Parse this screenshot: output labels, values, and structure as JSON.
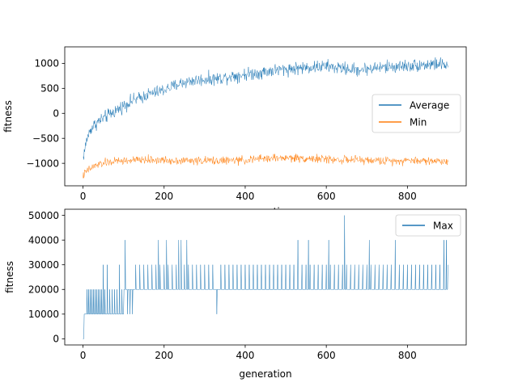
{
  "chart_data": [
    {
      "type": "line",
      "xlabel": "generation",
      "ylabel": "fitness",
      "xlim": [
        -45,
        945
      ],
      "ylim": [
        -1450,
        1330
      ],
      "xticks": [
        0,
        200,
        400,
        600,
        800
      ],
      "yticks": [
        -1000,
        -500,
        0,
        500,
        1000
      ],
      "xtick_labels": [
        "0",
        "200",
        "400",
        "600",
        "800"
      ],
      "ytick_labels": [
        "−1000",
        "−500",
        "0",
        "500",
        "1000"
      ],
      "legend": {
        "placement": "center-right",
        "entries": [
          "Average",
          "Min"
        ]
      },
      "series": [
        {
          "name": "Average",
          "color": "#1f77b4",
          "x": [
            0,
            10,
            20,
            30,
            40,
            60,
            80,
            100,
            120,
            140,
            160,
            180,
            200,
            220,
            240,
            260,
            280,
            300,
            320,
            340,
            360,
            380,
            400,
            420,
            440,
            460,
            480,
            500,
            520,
            540,
            560,
            580,
            600,
            620,
            640,
            660,
            680,
            700,
            720,
            740,
            760,
            780,
            800,
            820,
            840,
            860,
            880,
            900
          ],
          "values": [
            -900,
            -500,
            -300,
            -220,
            -150,
            -50,
            50,
            150,
            250,
            300,
            380,
            420,
            470,
            530,
            600,
            640,
            660,
            680,
            690,
            700,
            740,
            760,
            780,
            800,
            820,
            850,
            870,
            880,
            900,
            910,
            920,
            930,
            940,
            920,
            900,
            880,
            870,
            890,
            910,
            920,
            930,
            940,
            950,
            960,
            970,
            980,
            990,
            950
          ],
          "noise": 110
        },
        {
          "name": "Min",
          "color": "#ff7f0e",
          "x": [
            0,
            10,
            20,
            30,
            40,
            60,
            80,
            100,
            150,
            200,
            300,
            400,
            450,
            500,
            550,
            600,
            650,
            700,
            750,
            800,
            850,
            900
          ],
          "values": [
            -1250,
            -1150,
            -1100,
            -1050,
            -1020,
            -980,
            -960,
            -950,
            -930,
            -940,
            -950,
            -940,
            -900,
            -890,
            -900,
            -920,
            -930,
            -940,
            -950,
            -940,
            -950,
            -960
          ],
          "noise": 70
        }
      ]
    },
    {
      "type": "line",
      "xlabel": "generation",
      "ylabel": "fitness",
      "xlim": [
        -45,
        945
      ],
      "ylim": [
        -2500,
        52500
      ],
      "xticks": [
        0,
        200,
        400,
        600,
        800
      ],
      "yticks": [
        0,
        10000,
        20000,
        30000,
        40000,
        50000
      ],
      "xtick_labels": [
        "0",
        "200",
        "400",
        "600",
        "800"
      ],
      "ytick_labels": [
        "0",
        "10000",
        "20000",
        "30000",
        "40000",
        "50000"
      ],
      "legend": {
        "placement": "top-right",
        "entries": [
          "Max"
        ]
      },
      "series": [
        {
          "name": "Max",
          "color": "#1f77b4",
          "baseline_segments": [
            {
              "x": [
                0,
                2
              ],
              "value": 0
            },
            {
              "x": [
                2,
                100
              ],
              "value": 10000
            },
            {
              "x": [
                100,
                900
              ],
              "value": 20000
            }
          ],
          "spikes": [
            [
              10,
              20000
            ],
            [
              14,
              20000
            ],
            [
              18,
              20000
            ],
            [
              22,
              20000
            ],
            [
              26,
              20000
            ],
            [
              30,
              20000
            ],
            [
              34,
              20000
            ],
            [
              38,
              20000
            ],
            [
              42,
              20000
            ],
            [
              46,
              20000
            ],
            [
              50,
              30000
            ],
            [
              54,
              20000
            ],
            [
              60,
              30000
            ],
            [
              66,
              20000
            ],
            [
              72,
              20000
            ],
            [
              78,
              20000
            ],
            [
              84,
              20000
            ],
            [
              90,
              30000
            ],
            [
              96,
              20000
            ],
            [
              104,
              40000
            ],
            [
              110,
              10000
            ],
            [
              116,
              10000
            ],
            [
              122,
              10000
            ],
            [
              130,
              30000
            ],
            [
              140,
              30000
            ],
            [
              150,
              30000
            ],
            [
              160,
              30000
            ],
            [
              170,
              30000
            ],
            [
              180,
              30000
            ],
            [
              186,
              40000
            ],
            [
              190,
              30000
            ],
            [
              200,
              30000
            ],
            [
              206,
              40000
            ],
            [
              210,
              30000
            ],
            [
              220,
              30000
            ],
            [
              230,
              30000
            ],
            [
              236,
              40000
            ],
            [
              242,
              40000
            ],
            [
              250,
              30000
            ],
            [
              256,
              40000
            ],
            [
              260,
              30000
            ],
            [
              270,
              30000
            ],
            [
              280,
              30000
            ],
            [
              290,
              30000
            ],
            [
              300,
              30000
            ],
            [
              310,
              30000
            ],
            [
              320,
              30000
            ],
            [
              330,
              10000
            ],
            [
              340,
              30000
            ],
            [
              350,
              30000
            ],
            [
              360,
              30000
            ],
            [
              370,
              30000
            ],
            [
              380,
              30000
            ],
            [
              390,
              30000
            ],
            [
              400,
              30000
            ],
            [
              410,
              30000
            ],
            [
              420,
              30000
            ],
            [
              430,
              30000
            ],
            [
              440,
              30000
            ],
            [
              450,
              30000
            ],
            [
              460,
              30000
            ],
            [
              470,
              30000
            ],
            [
              480,
              30000
            ],
            [
              490,
              30000
            ],
            [
              500,
              30000
            ],
            [
              510,
              30000
            ],
            [
              520,
              30000
            ],
            [
              530,
              40000
            ],
            [
              540,
              30000
            ],
            [
              550,
              30000
            ],
            [
              556,
              40000
            ],
            [
              560,
              30000
            ],
            [
              570,
              30000
            ],
            [
              580,
              30000
            ],
            [
              590,
              30000
            ],
            [
              600,
              30000
            ],
            [
              606,
              40000
            ],
            [
              610,
              30000
            ],
            [
              620,
              30000
            ],
            [
              630,
              30000
            ],
            [
              640,
              30000
            ],
            [
              645,
              50000
            ],
            [
              650,
              30000
            ],
            [
              660,
              30000
            ],
            [
              670,
              30000
            ],
            [
              680,
              30000
            ],
            [
              690,
              30000
            ],
            [
              700,
              30000
            ],
            [
              706,
              40000
            ],
            [
              710,
              30000
            ],
            [
              720,
              30000
            ],
            [
              730,
              30000
            ],
            [
              740,
              30000
            ],
            [
              750,
              30000
            ],
            [
              760,
              30000
            ],
            [
              770,
              40000
            ],
            [
              780,
              30000
            ],
            [
              790,
              30000
            ],
            [
              800,
              30000
            ],
            [
              810,
              30000
            ],
            [
              820,
              30000
            ],
            [
              830,
              30000
            ],
            [
              840,
              30000
            ],
            [
              850,
              30000
            ],
            [
              860,
              30000
            ],
            [
              870,
              30000
            ],
            [
              880,
              30000
            ],
            [
              890,
              40000
            ],
            [
              896,
              40000
            ],
            [
              900,
              30000
            ]
          ]
        }
      ]
    }
  ]
}
